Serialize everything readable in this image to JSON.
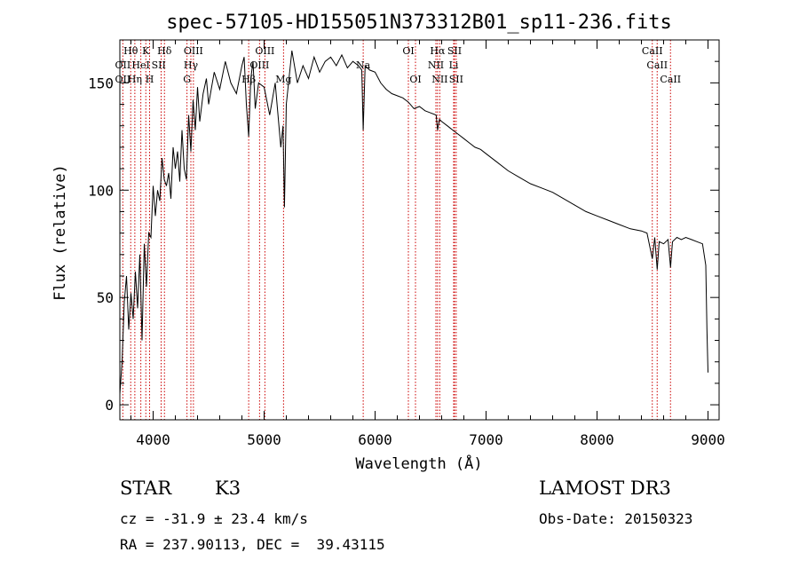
{
  "chart_data": {
    "type": "line",
    "title": "spec-57105-HD155051N373312B01_sp11-236.fits",
    "xlabel": "Wavelength (Å)",
    "ylabel": "Flux (relative)",
    "xlim": [
      3700,
      9100
    ],
    "ylim": [
      -7,
      170
    ],
    "xticks": [
      4000,
      5000,
      6000,
      7000,
      8000,
      9000
    ],
    "yticks": [
      0,
      50,
      100,
      150
    ],
    "series": [
      {
        "name": "spectrum",
        "x": [
          3700,
          3720,
          3740,
          3760,
          3780,
          3800,
          3820,
          3840,
          3860,
          3880,
          3900,
          3920,
          3940,
          3960,
          3980,
          4000,
          4020,
          4040,
          4060,
          4080,
          4100,
          4120,
          4140,
          4160,
          4180,
          4200,
          4220,
          4240,
          4260,
          4280,
          4300,
          4320,
          4340,
          4360,
          4380,
          4400,
          4420,
          4450,
          4480,
          4500,
          4550,
          4600,
          4650,
          4700,
          4750,
          4800,
          4820,
          4840,
          4861,
          4880,
          4900,
          4920,
          4950,
          5000,
          5050,
          5100,
          5150,
          5170,
          5183,
          5200,
          5250,
          5300,
          5350,
          5400,
          5450,
          5500,
          5550,
          5600,
          5650,
          5700,
          5750,
          5800,
          5850,
          5880,
          5893,
          5910,
          5950,
          6000,
          6050,
          6100,
          6150,
          6200,
          6250,
          6300,
          6350,
          6400,
          6450,
          6500,
          6550,
          6563,
          6580,
          6600,
          6650,
          6700,
          6750,
          6800,
          6850,
          6900,
          6950,
          7000,
          7100,
          7200,
          7300,
          7400,
          7500,
          7600,
          7700,
          7800,
          7900,
          8000,
          8100,
          8200,
          8300,
          8400,
          8450,
          8498,
          8520,
          8542,
          8560,
          8600,
          8640,
          8662,
          8680,
          8720,
          8760,
          8800,
          8850,
          8900,
          8950,
          8980,
          8990,
          9000
        ],
        "values": [
          5,
          20,
          48,
          60,
          35,
          52,
          40,
          62,
          45,
          70,
          30,
          75,
          55,
          80,
          78,
          102,
          88,
          100,
          95,
          115,
          105,
          102,
          108,
          96,
          120,
          110,
          118,
          104,
          128,
          110,
          105,
          135,
          118,
          142,
          128,
          148,
          132,
          145,
          152,
          140,
          155,
          147,
          160,
          150,
          145,
          158,
          162,
          140,
          125,
          152,
          160,
          138,
          150,
          148,
          135,
          150,
          120,
          130,
          92,
          140,
          165,
          150,
          158,
          152,
          162,
          155,
          160,
          162,
          158,
          163,
          157,
          160,
          158,
          156,
          128,
          158,
          156,
          155,
          150,
          147,
          145,
          144,
          143,
          141,
          138,
          139,
          137,
          136,
          135,
          128,
          133,
          132,
          130,
          128,
          126,
          124,
          122,
          120,
          119,
          117,
          113,
          109,
          106,
          103,
          101,
          99,
          96,
          93,
          90,
          88,
          86,
          84,
          82,
          81,
          80,
          68,
          78,
          63,
          76,
          75,
          77,
          64,
          76,
          78,
          77,
          78,
          77,
          76,
          75,
          65,
          35,
          15
        ]
      }
    ],
    "line_markers": [
      {
        "name": "OII",
        "x": 3727
      },
      {
        "name": "Hθ",
        "x": 3798
      },
      {
        "name": "Hη",
        "x": 3835
      },
      {
        "name": "HeI",
        "x": 3889
      },
      {
        "name": "K",
        "x": 3934
      },
      {
        "name": "H",
        "x": 3968
      },
      {
        "name": "Hδ",
        "x": 4102
      },
      {
        "name": "SII",
        "x": 4072
      },
      {
        "name": "Hγ",
        "x": 4340
      },
      {
        "name": "G",
        "x": 4305
      },
      {
        "name": "OIII",
        "x": 4363
      },
      {
        "name": "Hβ",
        "x": 4861
      },
      {
        "name": "OIII",
        "x": 4959
      },
      {
        "name": "OIII",
        "x": 5007
      },
      {
        "name": "Mg",
        "x": 5175
      },
      {
        "name": "Na",
        "x": 5893
      },
      {
        "name": "OI",
        "x": 6300
      },
      {
        "name": "OI",
        "x": 6364
      },
      {
        "name": "NII",
        "x": 6548
      },
      {
        "name": "Hα",
        "x": 6563
      },
      {
        "name": "NII",
        "x": 6583
      },
      {
        "name": "Li",
        "x": 6708
      },
      {
        "name": "SII",
        "x": 6716
      },
      {
        "name": "SII",
        "x": 6731
      },
      {
        "name": "CaII",
        "x": 8498
      },
      {
        "name": "CaII",
        "x": 8542
      },
      {
        "name": "CaII",
        "x": 8662
      }
    ],
    "line_labels": [
      {
        "text": "Hθ",
        "x": 3798,
        "row": 0
      },
      {
        "text": "K",
        "x": 3934,
        "row": 0
      },
      {
        "text": "Hδ",
        "x": 4102,
        "row": 0
      },
      {
        "text": "OII",
        "x": 3727,
        "row": 1
      },
      {
        "text": "HeI",
        "x": 3889,
        "row": 1
      },
      {
        "text": "SII",
        "x": 4050,
        "row": 1
      },
      {
        "text": "OII",
        "x": 3727,
        "row": 2
      },
      {
        "text": "Hη",
        "x": 3835,
        "row": 2
      },
      {
        "text": "H",
        "x": 3968,
        "row": 2
      },
      {
        "text": "OIII",
        "x": 4363,
        "row": 0
      },
      {
        "text": "Hγ",
        "x": 4340,
        "row": 1
      },
      {
        "text": "G",
        "x": 4305,
        "row": 2
      },
      {
        "text": "OIII",
        "x": 5007,
        "row": 0
      },
      {
        "text": "OIII",
        "x": 4959,
        "row": 1
      },
      {
        "text": "Hβ",
        "x": 4861,
        "row": 2
      },
      {
        "text": "Mg",
        "x": 5175,
        "row": 2
      },
      {
        "text": "Na",
        "x": 5893,
        "row": 1
      },
      {
        "text": "OI",
        "x": 6300,
        "row": 0
      },
      {
        "text": "OI",
        "x": 6364,
        "row": 2
      },
      {
        "text": "Hα",
        "x": 6563,
        "row": 0
      },
      {
        "text": "SII",
        "x": 6716,
        "row": 0
      },
      {
        "text": "NII",
        "x": 6548,
        "row": 1
      },
      {
        "text": "Li",
        "x": 6708,
        "row": 1
      },
      {
        "text": "NII",
        "x": 6583,
        "row": 2
      },
      {
        "text": "SII",
        "x": 6731,
        "row": 2
      },
      {
        "text": "CaII",
        "x": 8498,
        "row": 0
      },
      {
        "text": "CaII",
        "x": 8542,
        "row": 1
      },
      {
        "text": "CaII",
        "x": 8662,
        "row": 2
      }
    ],
    "colors": {
      "spectrum": "#000000",
      "line_marker": "#cc0000",
      "axis": "#000000"
    }
  },
  "info": {
    "object_class": "STAR",
    "subclass": "K3",
    "survey": "LAMOST DR3",
    "cz": "cz = -31.9 ± 23.4 km/s",
    "obs_date": "Obs-Date: 20150323",
    "coords": "RA = 237.90113, DEC =  39.43115"
  }
}
